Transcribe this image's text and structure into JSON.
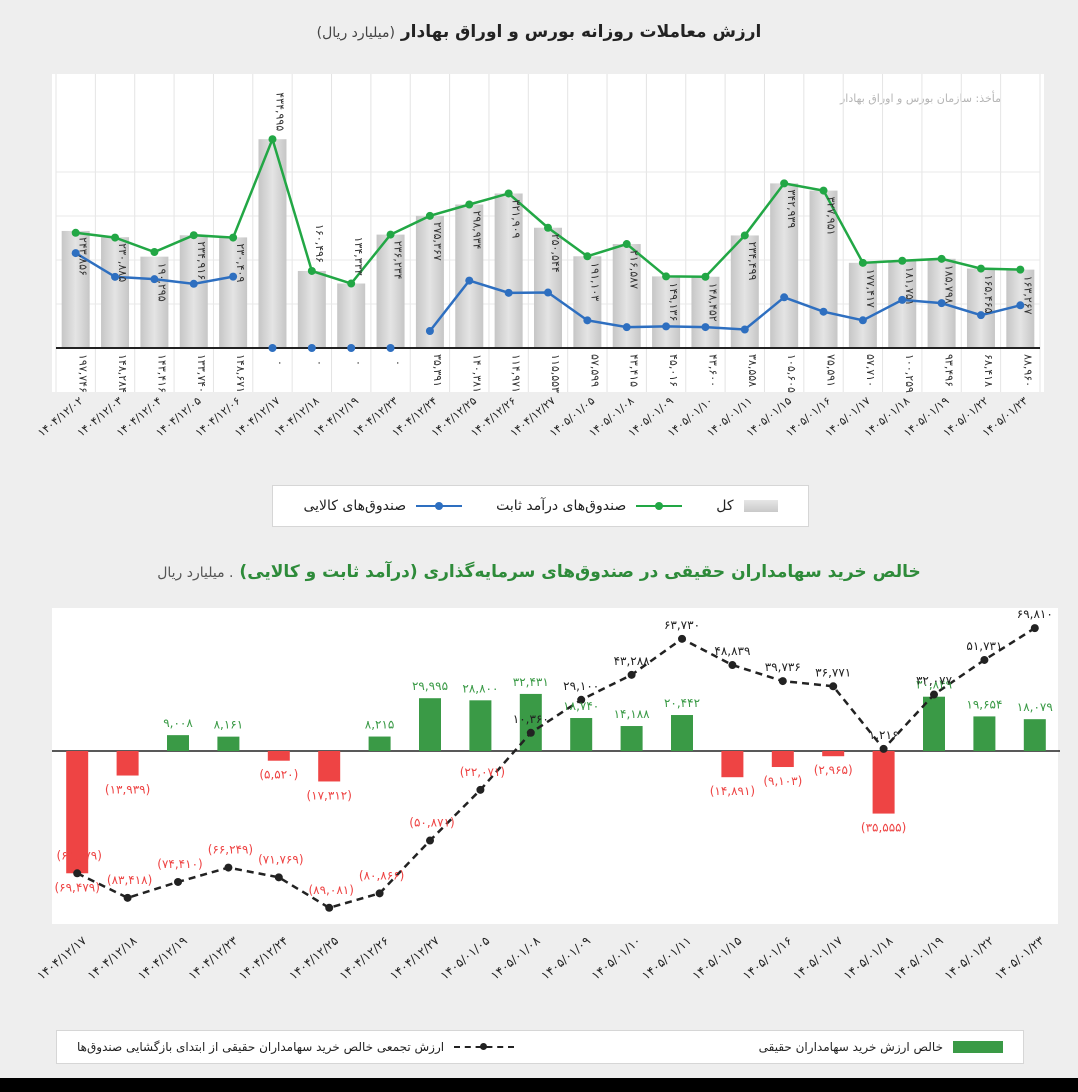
{
  "panel1": {
    "title": "ارزش معاملات روزانه بورس و اوراق بهادار",
    "unit": "(میلیارد ریال)",
    "source": "مأخذ: سازمان بورس و اوراق بهادار",
    "legend": {
      "total": "کل",
      "fixed_income": "صندوق‌های درآمد ثابت",
      "commodity": "صندوق‌های کالایی"
    },
    "colors": {
      "total": "#d3d3d3",
      "fixed_income": "#22a745",
      "commodity": "#2e6fc0"
    }
  },
  "panel2": {
    "title": "خالص خرید سهامداران حقیقی در صندوق‌های سرمایه‌گذاری (درآمد ثابت و کالایی)",
    "unit": ". میلیارد ریال",
    "legend": {
      "net": "خالص ارزش خرید سهامداران حقیقی",
      "cumulative": "ارزش تجمعی خالص خرید سهامداران حقیقی از ابتدای بازگشایی صندوق‌ها"
    },
    "colors": {
      "positive": "#3a9a46",
      "negative": "#ee4444",
      "cumulative": "#222222"
    }
  },
  "chart_data": [
    {
      "type": "bar",
      "categories": [
        "۱۴۰۴/۱۲/۰۲",
        "۱۴۰۴/۱۲/۰۳",
        "۱۴۰۴/۱۲/۰۴",
        "۱۴۰۴/۱۲/۰۵",
        "۱۴۰۴/۱۲/۰۶",
        "۱۴۰۴/۱۲/۱۷",
        "۱۴۰۴/۱۲/۱۸",
        "۱۴۰۴/۱۲/۱۹",
        "۱۴۰۴/۱۲/۲۳",
        "۱۴۰۴/۱۲/۲۴",
        "۱۴۰۴/۱۲/۲۵",
        "۱۴۰۴/۱۲/۲۶",
        "۱۴۰۴/۱۲/۲۷",
        "۱۴۰۵/۰۱/۰۵",
        "۱۴۰۵/۰۱/۰۸",
        "۱۴۰۵/۰۱/۰۹",
        "۱۴۰۵/۰۱/۱۰",
        "۱۴۰۵/۰۱/۱۱",
        "۱۴۰۵/۰۱/۱۵",
        "۱۴۰۵/۰۱/۱۶",
        "۱۴۰۵/۰۱/۱۷",
        "۱۴۰۵/۰۱/۱۸",
        "۱۴۰۵/۰۱/۱۹",
        "۱۴۰۵/۰۱/۲۲",
        "۱۴۰۵/۰۱/۲۳"
      ],
      "series": [
        {
          "name": "کل",
          "values": [
            243856,
            230885,
            190295,
            234916,
            230409,
            null,
            null,
            null,
            236234,
            275367,
            298934,
            321909,
            250544,
            191103,
            216587,
            149136,
            148452,
            234499,
            342939,
            327951,
            177417,
            181751,
            185798,
            165465,
            163267
          ],
          "labels": [
            "۲۴۳,۸۵۶",
            "۲۳۰,۸۸۵",
            "۱۹۰,۲۹۵",
            "۲۳۴,۹۱۶",
            "۲۳۰,۴۰۹",
            "",
            "",
            "",
            "۲۳۶,۲۳۴",
            "۲۷۵,۳۶۷",
            "۲۹۸,۹۳۴",
            "۳۲۱,۹۰۹",
            "۲۵۰,۵۴۴",
            "۱۹۱,۱۰۳",
            "۲۱۶,۵۸۷",
            "۱۴۹,۱۳۶",
            "۱۴۸,۴۵۲",
            "۲۳۴,۴۹۹",
            "۳۴۲,۹۳۹",
            "۳۲۷,۹۵۱",
            "۱۷۷,۴۱۷",
            "۱۸۱,۷۵۱",
            "۱۸۵,۷۹۸",
            "۱۶۵,۴۶۵",
            "۱۶۳,۲۶۷"
          ]
        },
        {
          "name": "صندوق‌های درآمد ثابت",
          "values": [
            240000,
            230000,
            200000,
            235000,
            230000,
            434995,
            160496,
            134333,
            236234,
            275367,
            298934,
            321909,
            250544,
            191103,
            216587,
            149136,
            148452,
            234499,
            342939,
            327951,
            177417,
            181751,
            185798,
            165465,
            163267
          ],
          "labels": [
            "",
            "",
            "",
            "",
            "",
            "۴۳۴,۹۹۵",
            "۱۶۰,۴۹۶",
            "۱۳۴,۳۳۳",
            "",
            "",
            "",
            "",
            "",
            "",
            "",
            "",
            "",
            "",
            "",
            "",
            "",
            "",
            "",
            "",
            ""
          ]
        },
        {
          "name": "صندوق‌های کالایی",
          "values": [
            197746,
            148284,
            143416,
            133740,
            148671,
            0,
            0,
            0,
            0,
            35391,
            140381,
            114971,
            115553,
            57599,
            43415,
            45016,
            43600,
            38558,
            105605,
            75591,
            57710,
            100259,
            93496,
            68418,
            88960
          ],
          "labels": [
            "۱۹۷,۷۴۶",
            "۱۴۸,۲۸۴",
            "۱۴۳,۴۱۶",
            "۱۳۳,۷۴۰",
            "۱۴۸,۶۷۱",
            "۰",
            "۰",
            "۰",
            "۰",
            "۳۵,۳۹۱",
            "۱۴۰,۳۸۱",
            "۱۱۴,۹۷۱",
            "۱۱۵,۵۵۳",
            "۵۷,۵۹۹",
            "۴۳,۴۱۵",
            "۴۵,۰۱۶",
            "۴۳,۶۰۰",
            "۳۸,۵۵۸",
            "۱۰۵,۶۰۵",
            "۷۵,۵۹۱",
            "۵۷,۷۱۰",
            "۱۰۰,۲۵۹",
            "۹۳,۴۹۶",
            "۶۸,۴۱۸",
            "۸۸,۹۶۰"
          ]
        }
      ],
      "ylim": [
        0,
        460000
      ]
    },
    {
      "type": "bar",
      "categories": [
        "۱۴۰۴/۱۲/۱۷",
        "۱۴۰۴/۱۲/۱۸",
        "۱۴۰۴/۱۲/۱۹",
        "۱۴۰۴/۱۲/۲۳",
        "۱۴۰۴/۱۲/۲۴",
        "۱۴۰۴/۱۲/۲۵",
        "۱۴۰۴/۱۲/۲۶",
        "۱۴۰۴/۱۲/۲۷",
        "۱۴۰۵/۰۱/۰۵",
        "۱۴۰۵/۰۱/۰۸",
        "۱۴۰۵/۰۱/۰۹",
        "۱۴۰۵/۰۱/۱۰",
        "۱۴۰۵/۰۱/۱۱",
        "۱۴۰۵/۰۱/۱۵",
        "۱۴۰۵/۰۱/۱۶",
        "۱۴۰۵/۰۱/۱۷",
        "۱۴۰۵/۰۱/۱۸",
        "۱۴۰۵/۰۱/۱۹",
        "۱۴۰۵/۰۱/۲۲",
        "۱۴۰۵/۰۱/۲۳"
      ],
      "series": [
        {
          "name": "خالص ارزش خرید سهامداران حقیقی",
          "values": [
            -69479,
            -13939,
            9008,
            8161,
            -5520,
            -17312,
            8215,
            29995,
            28800,
            32431,
            18740,
            14188,
            20442,
            -14891,
            -9103,
            -2965,
            -35555,
            30849,
            19654,
            18079
          ],
          "labels": [
            "(۶۹,۴۷۹)",
            "(۱۳,۹۳۹)",
            "۹,۰۰۸",
            "۸,۱۶۱",
            "(۵,۵۲۰)",
            "(۱۷,۳۱۲)",
            "۸,۲۱۵",
            "۲۹,۹۹۵",
            "۲۸,۸۰۰",
            "۳۲,۴۳۱",
            "۱۸,۷۴۰",
            "۱۴,۱۸۸",
            "۲۰,۴۴۲",
            "(۱۴,۸۹۱)",
            "(۹,۱۰۳)",
            "(۲,۹۶۵)",
            "(۳۵,۵۵۵)",
            "۳۰,۸۴۹",
            "۱۹,۶۵۴",
            "۱۸,۰۷۹"
          ]
        },
        {
          "name": "ارزش تجمعی خالص خرید سهامداران حقیقی از ابتدای بازگشایی صندوق‌ها",
          "values": [
            -69479,
            -83418,
            -74410,
            -66249,
            -71769,
            -89081,
            -80866,
            -50871,
            -22071,
            10360,
            29100,
            43288,
            63730,
            48839,
            39736,
            36771,
            1216,
            32077,
            51731,
            69810
          ],
          "labels": [
            "(۶۹,۴۷۹)",
            "(۸۳,۴۱۸)",
            "(۷۴,۴۱۰)",
            "(۶۶,۲۴۹)",
            "(۷۱,۷۶۹)",
            "(۸۹,۰۸۱)",
            "(۸۰,۸۶۶)",
            "(۵۰,۸۷۱)",
            "(۲۲,۰۷۱)",
            "۱۰,۳۶۰",
            "۲۹,۱۰۰",
            "۴۳,۲۸۸",
            "۶۳,۷۳۰",
            "۴۸,۸۳۹",
            "۳۹,۷۳۶",
            "۳۶,۷۷۱",
            "۱,۲۱۶",
            "۳۲,۰۷۷",
            "۵۱,۷۳۱",
            "۶۹,۸۱۰"
          ]
        }
      ],
      "ylim": [
        -100000,
        75000
      ]
    }
  ]
}
